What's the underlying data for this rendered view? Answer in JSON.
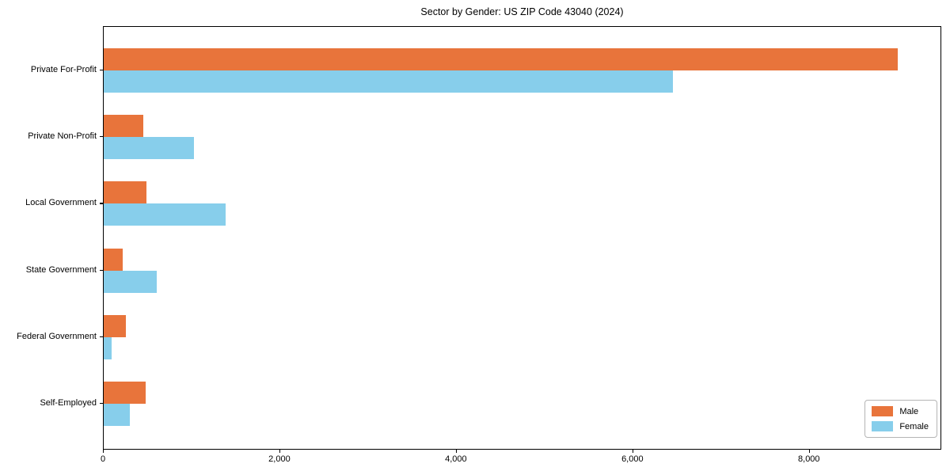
{
  "title": "Sector by Gender: US ZIP Code 43040 (2024)",
  "chart_data": {
    "type": "bar",
    "orientation": "horizontal",
    "title": "Sector by Gender: US ZIP Code 43040 (2024)",
    "categories": [
      "Private For-Profit",
      "Private Non-Profit",
      "Local Government",
      "State Government",
      "Federal Government",
      "Self-Employed"
    ],
    "series": [
      {
        "name": "Male",
        "color": "#E8743B",
        "values": [
          9000,
          450,
          480,
          215,
          250,
          475
        ]
      },
      {
        "name": "Female",
        "color": "#87CEEB",
        "values": [
          6450,
          1020,
          1380,
          600,
          85,
          300
        ]
      }
    ],
    "xlabel": "",
    "ylabel": "",
    "xlim": [
      0,
      9500
    ],
    "xticks": [
      0,
      2000,
      4000,
      6000,
      8000
    ],
    "xtick_labels": [
      "0",
      "2,000",
      "4,000",
      "6,000",
      "8,000"
    ],
    "grid": false,
    "legend_position": "lower right",
    "background": "#ffffff",
    "axis_color": "#000000"
  }
}
